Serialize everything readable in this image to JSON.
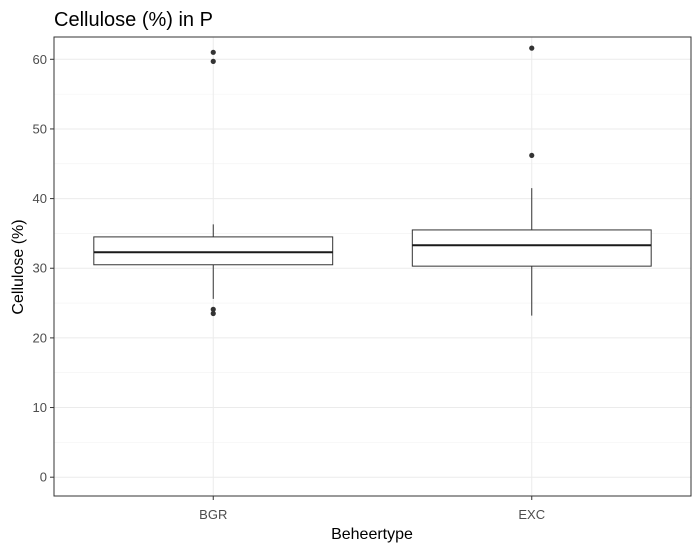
{
  "chart_data": {
    "type": "boxplot",
    "title": "Cellulose (%) in P",
    "xlabel": "Beheertype",
    "ylabel": "Cellulose (%)",
    "ylim": [
      -2.7,
      63.2
    ],
    "yticks": [
      0,
      10,
      20,
      30,
      40,
      50,
      60
    ],
    "grid": true,
    "categories": [
      "BGR",
      "EXC"
    ],
    "boxes": [
      {
        "category": "BGR",
        "lower_whisker": 25.6,
        "q1": 30.5,
        "median": 32.3,
        "q3": 34.5,
        "upper_whisker": 36.3,
        "outliers": [
          61.0,
          59.7,
          24.1,
          23.5
        ]
      },
      {
        "category": "EXC",
        "lower_whisker": 23.2,
        "q1": 30.3,
        "median": 33.3,
        "q3": 35.5,
        "upper_whisker": 41.5,
        "outliers": [
          61.6,
          46.2
        ]
      }
    ]
  }
}
